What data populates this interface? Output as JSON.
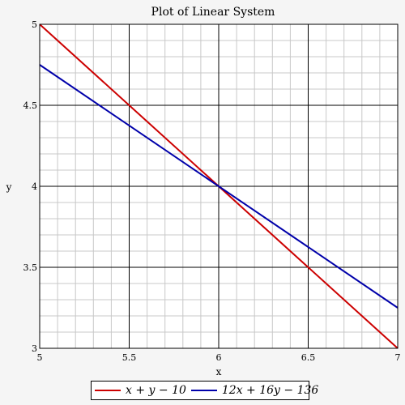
{
  "chart_data": {
    "type": "line",
    "title": "Plot of Linear System",
    "xlabel": "x",
    "ylabel": "y",
    "xlim": [
      5,
      7
    ],
    "ylim": [
      3,
      5
    ],
    "x_ticks": [
      "5",
      "5.5",
      "6",
      "6.5",
      "7"
    ],
    "y_ticks": [
      "3",
      "3.5",
      "4",
      "4.5",
      "5"
    ],
    "x_tick_values": [
      5,
      5.5,
      6,
      6.5,
      7
    ],
    "y_tick_values": [
      3,
      3.5,
      4,
      4.5,
      5
    ],
    "grid": true,
    "legend_position": "bottom",
    "series": [
      {
        "name": "x + y − 10",
        "color": "#cc0000",
        "x": [
          5,
          7
        ],
        "y": [
          5,
          3
        ]
      },
      {
        "name": "12x + 16y − 136",
        "color": "#0000aa",
        "x": [
          5,
          7
        ],
        "y": [
          4.75,
          3.25
        ]
      }
    ]
  }
}
